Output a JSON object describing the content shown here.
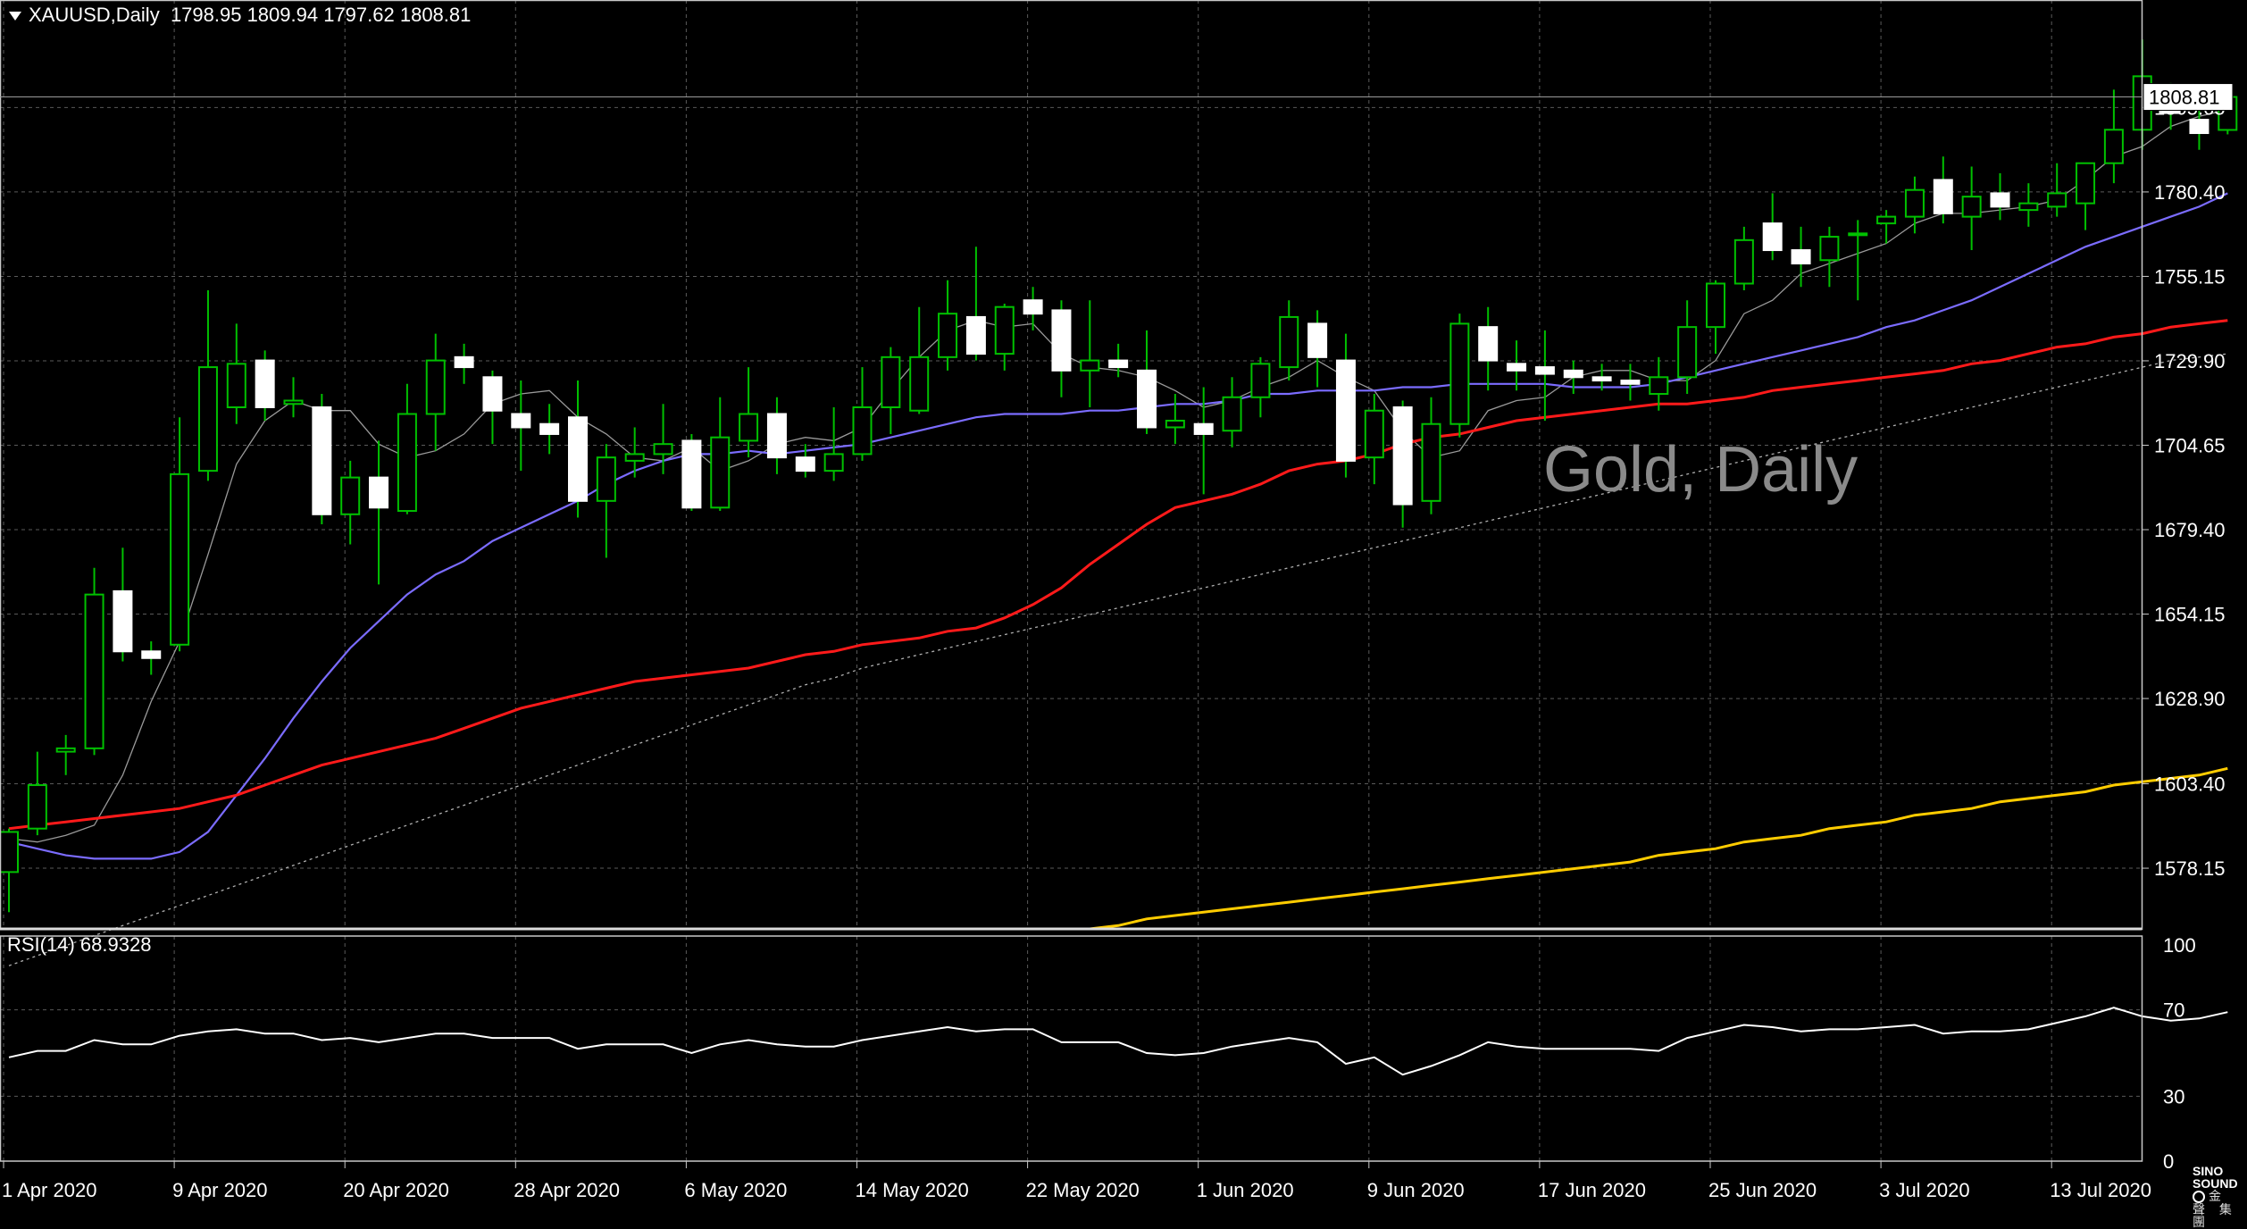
{
  "header": {
    "symbol": "XAUUSD,Daily",
    "ohlc": "1798.95 1809.94 1797.62 1808.81"
  },
  "watermark": "Gold, Daily",
  "current_price_tag": "1808.81",
  "rsi_header": "RSI(14) 68.9328",
  "logo": {
    "text": "SINO SOUND",
    "cn": "金 聲 集 團"
  },
  "colors": {
    "background": "#000000",
    "grid": "#5a5a5a",
    "bull_candle": "#00c000",
    "bear_candle": "#ffffff",
    "ma_fast": "#9a9a9a",
    "ma_20": "#7b6cff",
    "ma_50": "#ff1a1a",
    "ma_100": "#b0b0b0",
    "ma_200": "#ffcc00",
    "rsi": "#ffffff"
  },
  "chart_data": [
    {
      "type": "candlestick",
      "ylim": [
        1560.0,
        1833.0
      ],
      "y_ticks": [
        "1805.65",
        "1780.40",
        "1755.15",
        "1729.90",
        "1704.65",
        "1679.40",
        "1654.15",
        "1628.90",
        "1603.40",
        "1578.15"
      ],
      "y_tick_values": [
        1805.65,
        1780.4,
        1755.15,
        1729.9,
        1704.65,
        1679.4,
        1654.15,
        1628.9,
        1603.4,
        1578.15
      ],
      "x_ticks": [
        "1 Apr 2020",
        "9 Apr 2020",
        "20 Apr 2020",
        "28 Apr 2020",
        "6 May 2020",
        "14 May 2020",
        "22 May 2020",
        "1 Jun 2020",
        "9 Jun 2020",
        "17 Jun 2020",
        "25 Jun 2020",
        "3 Jul 2020",
        "13 Jul 2020"
      ],
      "x_tick_index": [
        0,
        6,
        12,
        18,
        24,
        30,
        36,
        42,
        48,
        54,
        60,
        66,
        72
      ],
      "candles": [
        [
          1577,
          1589,
          1565,
          1590
        ],
        [
          1590,
          1603,
          1588,
          1613
        ],
        [
          1613,
          1614,
          1606,
          1618
        ],
        [
          1614,
          1660,
          1612,
          1668
        ],
        [
          1661,
          1643,
          1640,
          1674
        ],
        [
          1643,
          1641,
          1636,
          1646
        ],
        [
          1645,
          1696,
          1643,
          1713
        ],
        [
          1697,
          1728,
          1694,
          1751
        ],
        [
          1716,
          1729,
          1711,
          1741
        ],
        [
          1730,
          1716,
          1712,
          1733
        ],
        [
          1717,
          1718,
          1713,
          1725
        ],
        [
          1716,
          1684,
          1681,
          1720
        ],
        [
          1684,
          1695,
          1675,
          1700
        ],
        [
          1695,
          1686,
          1663,
          1706
        ],
        [
          1685,
          1714,
          1684,
          1723
        ],
        [
          1714,
          1730,
          1703,
          1738
        ],
        [
          1731,
          1728,
          1723,
          1735
        ],
        [
          1725,
          1715,
          1705,
          1727
        ],
        [
          1714,
          1710,
          1697,
          1724
        ],
        [
          1711,
          1708,
          1702,
          1717
        ],
        [
          1713,
          1688,
          1683,
          1724
        ],
        [
          1688,
          1701,
          1671,
          1705
        ],
        [
          1700,
          1702,
          1695,
          1710
        ],
        [
          1702,
          1705,
          1696,
          1717
        ],
        [
          1706,
          1686,
          1685,
          1708
        ],
        [
          1686,
          1707,
          1685,
          1719
        ],
        [
          1706,
          1714,
          1701,
          1728
        ],
        [
          1714,
          1701,
          1696,
          1719
        ],
        [
          1701,
          1697,
          1695,
          1705
        ],
        [
          1697,
          1702,
          1694,
          1716
        ],
        [
          1702,
          1716,
          1700,
          1728
        ],
        [
          1716,
          1731,
          1708,
          1734
        ],
        [
          1715,
          1731,
          1714,
          1746
        ],
        [
          1731,
          1744,
          1727,
          1754
        ],
        [
          1743,
          1732,
          1730,
          1764
        ],
        [
          1732,
          1746,
          1727,
          1747
        ],
        [
          1748,
          1744,
          1739,
          1752
        ],
        [
          1745,
          1727,
          1719,
          1748
        ],
        [
          1727,
          1730,
          1716,
          1748
        ],
        [
          1730,
          1728,
          1725,
          1735
        ],
        [
          1727,
          1710,
          1708,
          1739
        ],
        [
          1710,
          1712,
          1705,
          1720
        ],
        [
          1711,
          1708,
          1690,
          1722
        ],
        [
          1709,
          1719,
          1704,
          1725
        ],
        [
          1719,
          1729,
          1713,
          1731
        ],
        [
          1728,
          1743,
          1724,
          1748
        ],
        [
          1741,
          1731,
          1722,
          1745
        ],
        [
          1730,
          1700,
          1695,
          1738
        ],
        [
          1701,
          1715,
          1693,
          1720
        ],
        [
          1716,
          1687,
          1680,
          1718
        ],
        [
          1688,
          1711,
          1684,
          1719
        ],
        [
          1711,
          1741,
          1707,
          1744
        ],
        [
          1740,
          1730,
          1721,
          1746
        ],
        [
          1729,
          1727,
          1721,
          1736
        ],
        [
          1728,
          1726,
          1712,
          1739
        ],
        [
          1727,
          1725,
          1720,
          1730
        ],
        [
          1725,
          1724,
          1721,
          1729
        ],
        [
          1724,
          1723,
          1718,
          1729
        ],
        [
          1720,
          1725,
          1715,
          1731
        ],
        [
          1725,
          1740,
          1720,
          1748
        ],
        [
          1740,
          1753,
          1732,
          1754
        ],
        [
          1753,
          1766,
          1751,
          1770
        ],
        [
          1771,
          1763,
          1760,
          1780
        ],
        [
          1763,
          1759,
          1752,
          1770
        ],
        [
          1760,
          1767,
          1752,
          1770
        ],
        [
          1768,
          1768,
          1748,
          1772
        ],
        [
          1771,
          1773,
          1765,
          1775
        ],
        [
          1773,
          1781,
          1768,
          1785
        ],
        [
          1784,
          1774,
          1771,
          1791
        ],
        [
          1773,
          1779,
          1763,
          1788
        ],
        [
          1780,
          1776,
          1772,
          1786
        ],
        [
          1775,
          1777,
          1770,
          1783
        ],
        [
          1776,
          1780,
          1773,
          1789
        ],
        [
          1777,
          1789,
          1769,
          1789
        ],
        [
          1789,
          1799,
          1783,
          1811
        ],
        [
          1799,
          1815,
          1793,
          1826
        ],
        [
          1810,
          1804,
          1799,
          1813
        ],
        [
          1802,
          1798,
          1793,
          1805
        ],
        [
          1798.95,
          1808.81,
          1797.62,
          1809.94
        ]
      ],
      "series": [
        {
          "name": "",
          "color_key": "ma_fast",
          "values": [
            1587,
            1586,
            1588,
            1591,
            1606,
            1628,
            1646,
            1672,
            1699,
            1712,
            1718,
            1715,
            1715,
            1705,
            1701,
            1703,
            1708,
            1717,
            1720,
            1721,
            1713,
            1708,
            1701,
            1700,
            1704,
            1697,
            1700,
            1705,
            1707,
            1706,
            1710,
            1721,
            1731,
            1739,
            1742,
            1740,
            1741,
            1732,
            1728,
            1727,
            1725,
            1721,
            1716,
            1718,
            1722,
            1725,
            1730,
            1725,
            1721,
            1709,
            1701,
            1703,
            1715,
            1718,
            1719,
            1725,
            1727,
            1727,
            1724,
            1724,
            1730,
            1744,
            1748,
            1756,
            1759,
            1762,
            1765,
            1771,
            1774,
            1774,
            1775,
            1776,
            1778,
            1784,
            1791,
            1794,
            1800,
            1803,
            1805
          ]
        },
        {
          "name": "",
          "color_key": "ma_20",
          "values": [
            1586,
            1584,
            1582,
            1581,
            1581,
            1581,
            1583,
            1589,
            1600,
            1611,
            1623,
            1634,
            1644,
            1652,
            1660,
            1666,
            1670,
            1676,
            1680,
            1684,
            1688,
            1693,
            1697,
            1700,
            1702,
            1702,
            1703,
            1702,
            1703,
            1704,
            1705,
            1707,
            1709,
            1711,
            1713,
            1714,
            1714,
            1714,
            1715,
            1715,
            1716,
            1717,
            1717,
            1718,
            1720,
            1720,
            1721,
            1721,
            1721,
            1722,
            1722,
            1723,
            1723,
            1723,
            1723,
            1722,
            1722,
            1722,
            1723,
            1725,
            1727,
            1729,
            1731,
            1733,
            1735,
            1737,
            1740,
            1742,
            1745,
            1748,
            1752,
            1756,
            1760,
            1764,
            1767,
            1770,
            1773,
            1776,
            1780
          ]
        },
        {
          "name": "",
          "color_key": "ma_50",
          "values": [
            1590,
            1591,
            1592,
            1593,
            1594,
            1595,
            1596,
            1598,
            1600,
            1603,
            1606,
            1609,
            1611,
            1613,
            1615,
            1617,
            1620,
            1623,
            1626,
            1628,
            1630,
            1632,
            1634,
            1635,
            1636,
            1637,
            1638,
            1640,
            1642,
            1643,
            1645,
            1646,
            1647,
            1649,
            1650,
            1653,
            1657,
            1662,
            1669,
            1675,
            1681,
            1686,
            1688,
            1690,
            1693,
            1697,
            1699,
            1700,
            1702,
            1705,
            1707,
            1708,
            1710,
            1712,
            1713,
            1714,
            1715,
            1716,
            1717,
            1717,
            1718,
            1719,
            1721,
            1722,
            1723,
            1724,
            1725,
            1726,
            1727,
            1729,
            1730,
            1732,
            1734,
            1735,
            1737,
            1738,
            1740,
            1741,
            1742
          ]
        },
        {
          "name": "",
          "color_key": "ma_100",
          "values": [
            1549,
            1552,
            1555,
            1558,
            1561,
            1564,
            1567,
            1570,
            1573,
            1576,
            1579,
            1582,
            1585,
            1588,
            1591,
            1594,
            1597,
            1600,
            1603,
            1606,
            1609,
            1612,
            1615,
            1618,
            1621,
            1624,
            1627,
            1630,
            1633,
            1635,
            1638,
            1640,
            1642,
            1644,
            1646,
            1648,
            1650,
            1652,
            1654,
            1656,
            1658,
            1660,
            1662,
            1664,
            1666,
            1668,
            1670,
            1672,
            1674,
            1676,
            1678,
            1680,
            1682,
            1684,
            1686,
            1688,
            1690,
            1692,
            1694,
            1696,
            1698,
            1700,
            1702,
            1704,
            1706,
            1708,
            1710,
            1712,
            1714,
            1716,
            1718,
            1720,
            1722,
            1724,
            1726,
            1728,
            1730,
            1731,
            1732
          ]
        },
        {
          "name": "",
          "color_key": "ma_200",
          "values": [
            null,
            null,
            null,
            null,
            null,
            null,
            null,
            null,
            null,
            null,
            null,
            null,
            null,
            null,
            null,
            null,
            null,
            null,
            null,
            null,
            null,
            null,
            null,
            null,
            null,
            null,
            null,
            null,
            null,
            null,
            null,
            null,
            null,
            null,
            null,
            null,
            null,
            null,
            1560,
            1561,
            1563,
            1564,
            1565,
            1566,
            1567,
            1568,
            1569,
            1570,
            1571,
            1572,
            1573,
            1574,
            1575,
            1576,
            1577,
            1578,
            1579,
            1580,
            1582,
            1583,
            1584,
            1586,
            1587,
            1588,
            1590,
            1591,
            1592,
            1594,
            1595,
            1596,
            1598,
            1599,
            1600,
            1601,
            1603,
            1604,
            1605,
            1606,
            1608
          ]
        }
      ]
    },
    {
      "type": "line",
      "title": "RSI(14) 68.9328",
      "ylim": [
        0,
        100
      ],
      "y_ticks": [
        "100",
        "70",
        "30",
        "0"
      ],
      "y_tick_values": [
        100,
        70,
        30,
        0
      ],
      "series": [
        {
          "name": "RSI(14)",
          "values": [
            48,
            51,
            51,
            56,
            54,
            54,
            58,
            60,
            61,
            59,
            59,
            56,
            57,
            55,
            57,
            59,
            59,
            57,
            57,
            57,
            52,
            54,
            54,
            54,
            50,
            54,
            56,
            54,
            53,
            53,
            56,
            58,
            60,
            62,
            60,
            61,
            61,
            55,
            55,
            55,
            50,
            49,
            50,
            53,
            55,
            57,
            55,
            45,
            48,
            40,
            44,
            49,
            55,
            53,
            52,
            52,
            52,
            52,
            51,
            57,
            60,
            63,
            62,
            60,
            61,
            61,
            62,
            63,
            59,
            60,
            60,
            61,
            64,
            67,
            71,
            67,
            65,
            66,
            68.93
          ]
        }
      ]
    }
  ]
}
